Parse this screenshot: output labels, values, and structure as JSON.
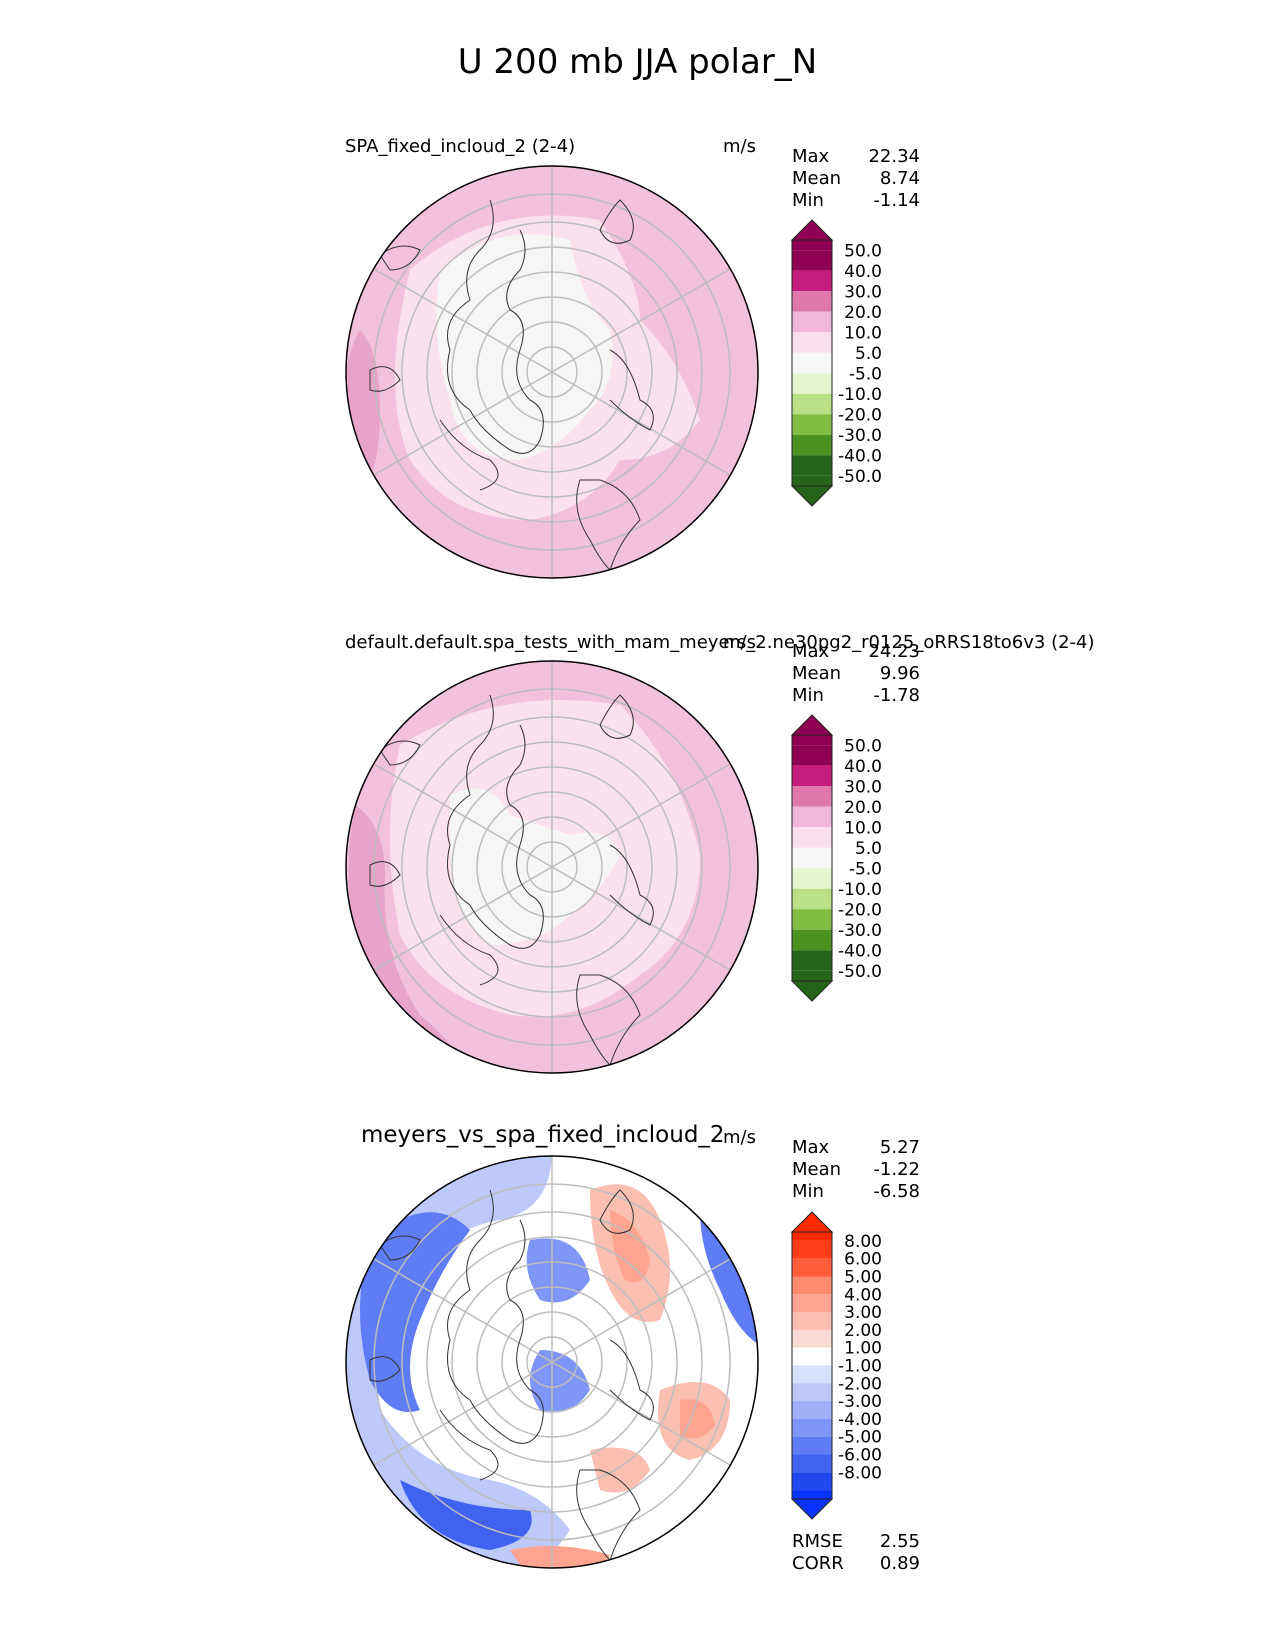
{
  "title": "U 200 mb JJA polar_N",
  "panels": [
    {
      "name": "SPA_fixed_incloud_2 (2-4)",
      "units": "m/s",
      "stats": [
        {
          "label": "Max",
          "value": "22.34"
        },
        {
          "label": "Mean",
          "value": "8.74"
        },
        {
          "label": "Min",
          "value": "-1.14"
        }
      ],
      "colorbar": {
        "levels": [
          "50.0",
          "40.0",
          "30.0",
          "20.0",
          "10.0",
          "5.0",
          "-5.0",
          "-10.0",
          "-20.0",
          "-30.0",
          "-40.0",
          "-50.0"
        ],
        "colors": [
          "#8e0152",
          "#c51b7d",
          "#de77ae",
          "#f1b6da",
          "#fde0ef",
          "#f7f7f7",
          "#e6f5d0",
          "#b8e186",
          "#7fbc41",
          "#4d9221",
          "#276419"
        ],
        "extend_top": "#8e0152",
        "extend_bottom": "#276419"
      }
    },
    {
      "name": "default.default.spa_tests_with_mam_meyers_2.ne30pg2_r0125_oRRS18to6v3 (2-4)",
      "units": "m/s",
      "stats": [
        {
          "label": "Max",
          "value": "24.23"
        },
        {
          "label": "Mean",
          "value": "9.96"
        },
        {
          "label": "Min",
          "value": "-1.78"
        }
      ],
      "colorbar": {
        "levels": [
          "50.0",
          "40.0",
          "30.0",
          "20.0",
          "10.0",
          "5.0",
          "-5.0",
          "-10.0",
          "-20.0",
          "-30.0",
          "-40.0",
          "-50.0"
        ],
        "colors": [
          "#8e0152",
          "#c51b7d",
          "#de77ae",
          "#f1b6da",
          "#fde0ef",
          "#f7f7f7",
          "#e6f5d0",
          "#b8e186",
          "#7fbc41",
          "#4d9221",
          "#276419"
        ],
        "extend_top": "#8e0152",
        "extend_bottom": "#276419"
      }
    },
    {
      "name": "meyers_vs_spa_fixed_incloud_2",
      "units": "m/s",
      "stats": [
        {
          "label": "Max",
          "value": "5.27"
        },
        {
          "label": "Mean",
          "value": "-1.22"
        },
        {
          "label": "Min",
          "value": "-6.58"
        }
      ],
      "colorbar": {
        "levels": [
          "8.00",
          "6.00",
          "5.00",
          "4.00",
          "3.00",
          "2.00",
          "1.00",
          "-1.00",
          "-2.00",
          "-3.00",
          "-4.00",
          "-5.00",
          "-6.00",
          "-8.00"
        ],
        "colors": [
          "#ff3d1a",
          "#ff5c3a",
          "#ff8a70",
          "#fea491",
          "#fbbfb2",
          "#fbdcd5",
          "#ffffff",
          "#d9e0fc",
          "#bdc8fb",
          "#9fb0f9",
          "#7f96f7",
          "#5f7cf4",
          "#3f62f1",
          "#2048ee"
        ],
        "extend_top": "#ff2a00",
        "extend_bottom": "#0a32ff"
      },
      "extra_stats": [
        {
          "label": "RMSE",
          "value": "2.55"
        },
        {
          "label": "CORR",
          "value": "0.89"
        }
      ]
    }
  ],
  "chart_data": [
    {
      "type": "heatmap",
      "title": "SPA_fixed_incloud_2 (2-4)",
      "projection": "north polar stereographic",
      "units": "m/s",
      "stats": {
        "max": 22.34,
        "mean": 8.74,
        "min": -1.14
      },
      "levels": [
        -50,
        -40,
        -30,
        -20,
        -10,
        -5,
        5,
        10,
        20,
        30,
        40,
        50
      ]
    },
    {
      "type": "heatmap",
      "title": "default.default.spa_tests_with_mam_meyers_2.ne30pg2_r0125_oRRS18to6v3 (2-4)",
      "projection": "north polar stereographic",
      "units": "m/s",
      "stats": {
        "max": 24.23,
        "mean": 9.96,
        "min": -1.78
      },
      "levels": [
        -50,
        -40,
        -30,
        -20,
        -10,
        -5,
        5,
        10,
        20,
        30,
        40,
        50
      ]
    },
    {
      "type": "heatmap",
      "title": "meyers_vs_spa_fixed_incloud_2",
      "projection": "north polar stereographic",
      "units": "m/s",
      "stats": {
        "max": 5.27,
        "mean": -1.22,
        "min": -6.58,
        "rmse": 2.55,
        "corr": 0.89
      },
      "levels": [
        -8,
        -6,
        -5,
        -4,
        -3,
        -2,
        -1,
        1,
        2,
        3,
        4,
        5,
        6,
        8
      ]
    }
  ]
}
